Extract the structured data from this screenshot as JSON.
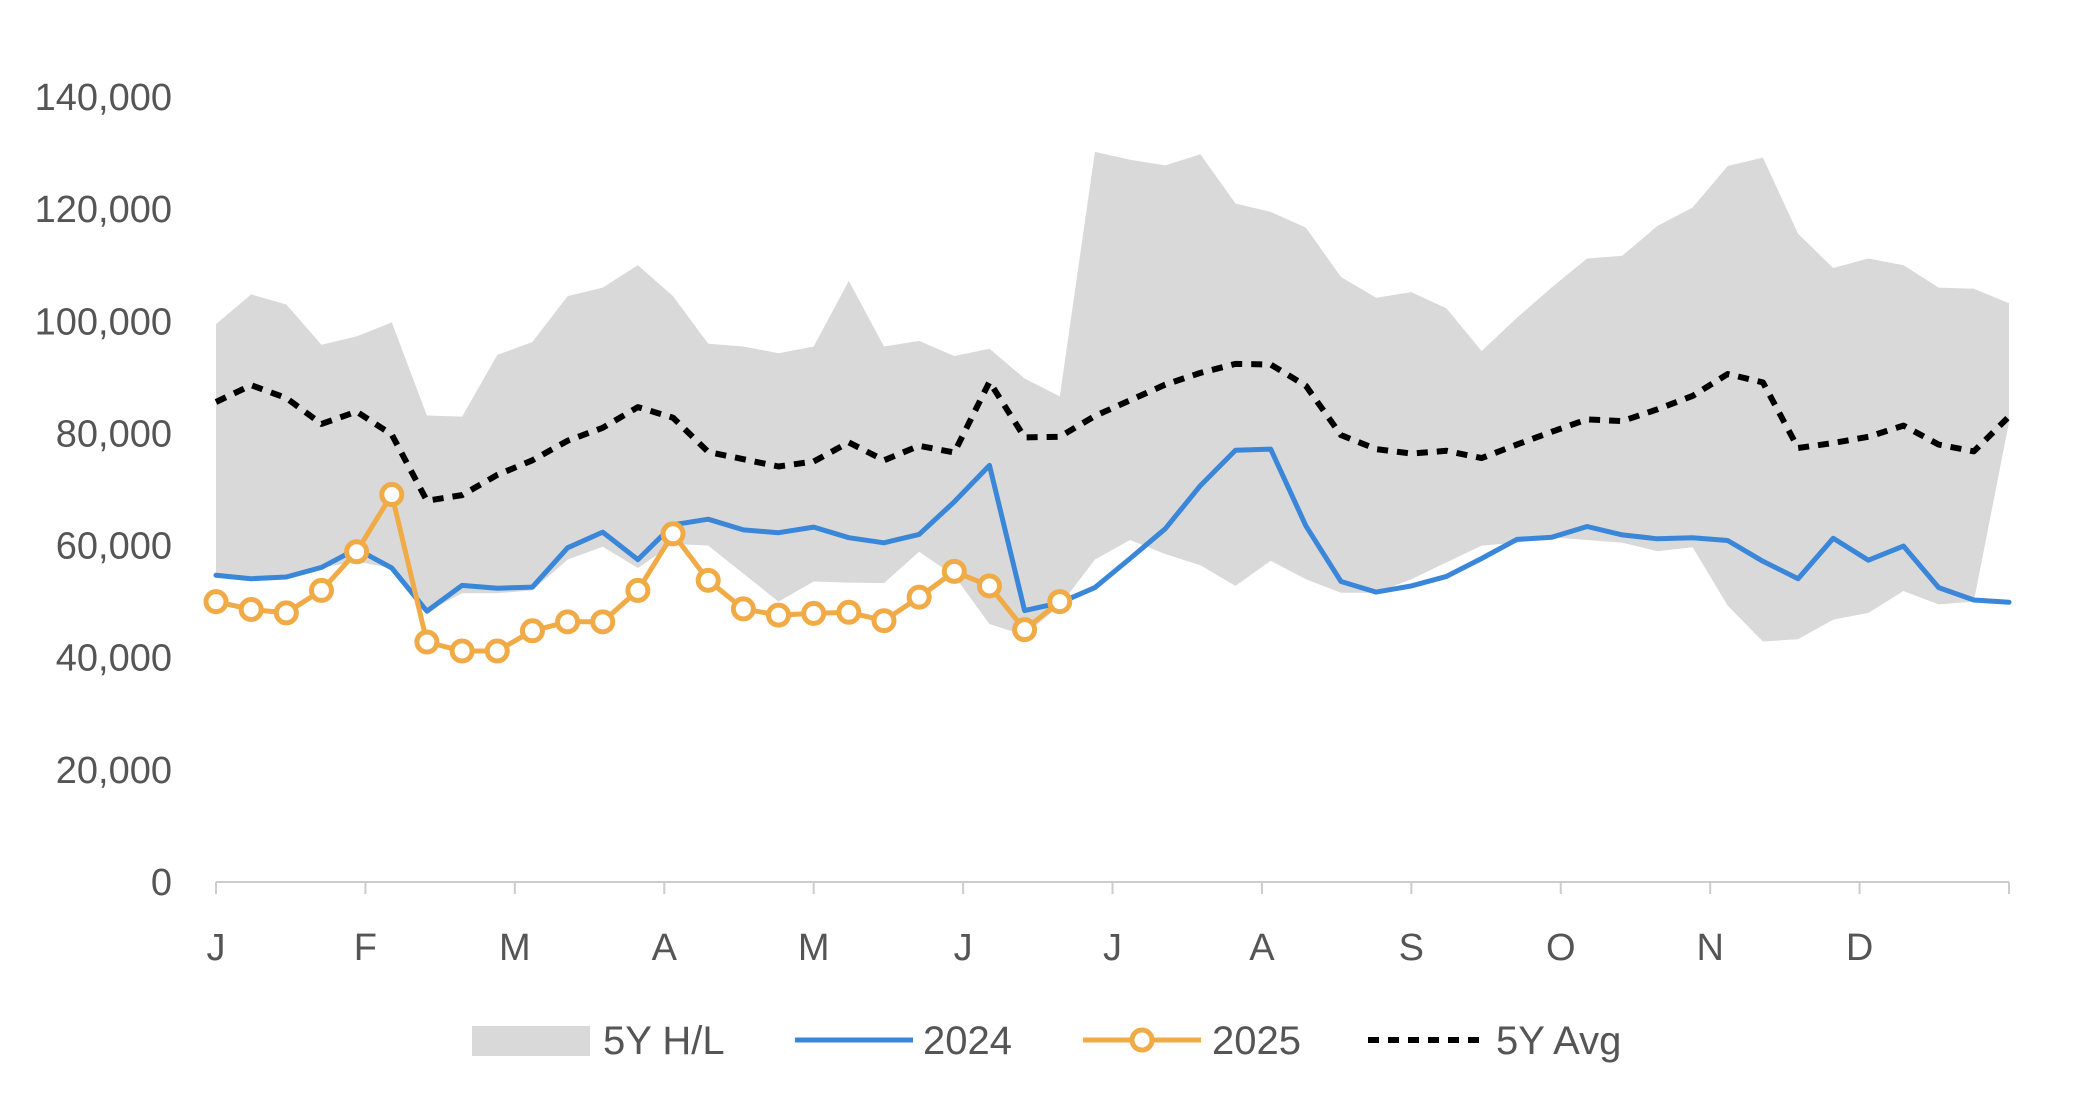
{
  "chart_data": {
    "type": "line",
    "title": "",
    "xlabel": "",
    "ylabel": "",
    "ylim": [
      0,
      140000
    ],
    "yticks": [
      0,
      20000,
      40000,
      60000,
      80000,
      100000,
      120000,
      140000
    ],
    "ytick_labels": [
      "0",
      "20,000",
      "40,000",
      "60,000",
      "80,000",
      "100,000",
      "120,000",
      "140,000"
    ],
    "month_labels": [
      "J",
      "F",
      "M",
      "A",
      "M",
      "J",
      "J",
      "A",
      "S",
      "O",
      "N",
      "D"
    ],
    "x_weeks": [
      1,
      2,
      3,
      4,
      5,
      6,
      7,
      8,
      9,
      10,
      11,
      12,
      13,
      14,
      15,
      16,
      17,
      18,
      19,
      20,
      21,
      22,
      23,
      24,
      25,
      26,
      27,
      28,
      29,
      30,
      31,
      32,
      33,
      34,
      35,
      36,
      37,
      38,
      39,
      40,
      41,
      42,
      43,
      44,
      45,
      46,
      47,
      48,
      49,
      50,
      51,
      52
    ],
    "legend_position": "bottom",
    "grid": false,
    "band": {
      "name": "5Y H/L",
      "color": "#d9d9d9",
      "high": [
        99500,
        104800,
        103000,
        95800,
        97300,
        99800,
        83200,
        83000,
        94000,
        96300,
        104500,
        106000,
        110000,
        104500,
        96000,
        95500,
        94300,
        95500,
        107200,
        95500,
        96500,
        93800,
        95100,
        89800,
        86600,
        130200,
        128800,
        127800,
        129800,
        121000,
        119500,
        116700,
        107900,
        104200,
        105200,
        102300,
        94700,
        100600,
        106100,
        111200,
        111700,
        117000,
        120300,
        127700,
        129200,
        115600,
        109500,
        111200,
        110000,
        106000,
        105800,
        103200
      ],
      "low": [
        54800,
        54300,
        54500,
        56100,
        57100,
        56000,
        48200,
        51500,
        51500,
        52000,
        57500,
        59800,
        56000,
        60300,
        60000,
        55000,
        50000,
        53600,
        53400,
        53300,
        58900,
        54600,
        46000,
        44000,
        49300,
        57500,
        61000,
        58500,
        56500,
        52800,
        57300,
        54000,
        51600,
        51600,
        54000,
        57000,
        60000,
        60500,
        61500,
        61000,
        60500,
        59000,
        59700,
        49300,
        42900,
        43300,
        46800,
        48000,
        51900,
        49500,
        50000,
        82000
      ]
    },
    "series": [
      {
        "name": "2024",
        "color": "#3a86d8",
        "values": [
          54700,
          54100,
          54400,
          56100,
          59400,
          56000,
          48300,
          52900,
          52400,
          52600,
          59600,
          62400,
          57500,
          63700,
          64700,
          62800,
          62300,
          63300,
          61400,
          60500,
          62000,
          67800,
          74300,
          48400,
          49800,
          52500,
          57700,
          63000,
          70700,
          77000,
          77200,
          63500,
          53600,
          51700,
          52800,
          54500,
          57700,
          61100,
          61500,
          63400,
          61900,
          61200,
          61400,
          60900,
          57200,
          54100,
          61300,
          57400,
          59900,
          52500,
          50300,
          49900
        ]
      },
      {
        "name": "2025",
        "color": "#f0aa46",
        "values": [
          50000,
          48600,
          48000,
          52000,
          58900,
          69100,
          42800,
          41200,
          41200,
          44800,
          46400,
          46400,
          52000,
          62100,
          53800,
          48700,
          47600,
          47900,
          48100,
          46600,
          50800,
          55400,
          52800,
          45000,
          50000
        ]
      },
      {
        "name": "5Y Avg",
        "color": "#000000",
        "values": [
          85600,
          88600,
          86300,
          81700,
          83900,
          79800,
          68000,
          69000,
          72600,
          75200,
          78700,
          81000,
          84700,
          82800,
          76700,
          75400,
          74100,
          75000,
          78400,
          75200,
          77800,
          76600,
          89200,
          79300,
          79400,
          83100,
          85900,
          88700,
          90800,
          92400,
          92300,
          88500,
          79700,
          77200,
          76400,
          76900,
          75600,
          78000,
          80300,
          82500,
          82200,
          84300,
          86700,
          90600,
          89100,
          77400,
          78300,
          79400,
          81400,
          78000,
          76800,
          83000
        ]
      }
    ]
  }
}
